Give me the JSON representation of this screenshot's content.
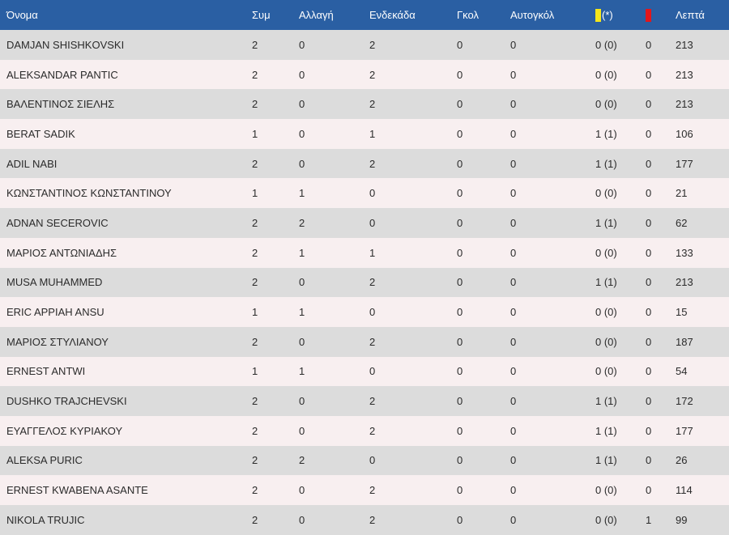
{
  "header": {
    "name": "Όνομα",
    "apps": "Συμ",
    "subs": "Αλλαγή",
    "starts": "Ενδεκάδα",
    "goals": "Γκολ",
    "own_goals": "Αυτογκόλ",
    "yellow_suffix": "(*)",
    "minutes": "Λεπτά"
  },
  "colors": {
    "header_bg": "#2a5fa3",
    "yellow_card": "#f5e61b",
    "red_card": "#e3161b",
    "row_odd": "#dcdcdc",
    "row_even": "#f8eff0"
  },
  "rows": [
    {
      "name": "DAMJAN SHISHKOVSKI",
      "apps": "2",
      "subs": "0",
      "starts": "2",
      "goals": "0",
      "own_goals": "0",
      "yellow": "0 (0)",
      "red": "0",
      "minutes": "213"
    },
    {
      "name": "ALEKSANDAR PANTIC",
      "apps": "2",
      "subs": "0",
      "starts": "2",
      "goals": "0",
      "own_goals": "0",
      "yellow": "0 (0)",
      "red": "0",
      "minutes": "213"
    },
    {
      "name": "ΒΑΛΕΝΤΙΝΟΣ ΣΙΕΛΗΣ",
      "apps": "2",
      "subs": "0",
      "starts": "2",
      "goals": "0",
      "own_goals": "0",
      "yellow": "0 (0)",
      "red": "0",
      "minutes": "213"
    },
    {
      "name": "BERAT SADIK",
      "apps": "1",
      "subs": "0",
      "starts": "1",
      "goals": "0",
      "own_goals": "0",
      "yellow": "1 (1)",
      "red": "0",
      "minutes": "106"
    },
    {
      "name": "ADIL NABI",
      "apps": "2",
      "subs": "0",
      "starts": "2",
      "goals": "0",
      "own_goals": "0",
      "yellow": "1 (1)",
      "red": "0",
      "minutes": "177"
    },
    {
      "name": "ΚΩΝΣΤΑΝΤΙΝΟΣ ΚΩΝΣΤΑΝΤΙΝΟΥ",
      "apps": "1",
      "subs": "1",
      "starts": "0",
      "goals": "0",
      "own_goals": "0",
      "yellow": "0 (0)",
      "red": "0",
      "minutes": "21"
    },
    {
      "name": "ADNAN SECEROVIC",
      "apps": "2",
      "subs": "2",
      "starts": "0",
      "goals": "0",
      "own_goals": "0",
      "yellow": "1 (1)",
      "red": "0",
      "minutes": "62"
    },
    {
      "name": "ΜΑΡΙΟΣ ΑΝΤΩΝΙΑΔΗΣ",
      "apps": "2",
      "subs": "1",
      "starts": "1",
      "goals": "0",
      "own_goals": "0",
      "yellow": "0 (0)",
      "red": "0",
      "minutes": "133"
    },
    {
      "name": "MUSA MUHAMMED",
      "apps": "2",
      "subs": "0",
      "starts": "2",
      "goals": "0",
      "own_goals": "0",
      "yellow": "1 (1)",
      "red": "0",
      "minutes": "213"
    },
    {
      "name": "ERIC APPIAH ANSU",
      "apps": "1",
      "subs": "1",
      "starts": "0",
      "goals": "0",
      "own_goals": "0",
      "yellow": "0 (0)",
      "red": "0",
      "minutes": "15"
    },
    {
      "name": "ΜΑΡΙΟΣ ΣΤΥΛΙΑΝΟΥ",
      "apps": "2",
      "subs": "0",
      "starts": "2",
      "goals": "0",
      "own_goals": "0",
      "yellow": "0 (0)",
      "red": "0",
      "minutes": "187"
    },
    {
      "name": "ERNEST ANTWI",
      "apps": "1",
      "subs": "1",
      "starts": "0",
      "goals": "0",
      "own_goals": "0",
      "yellow": "0 (0)",
      "red": "0",
      "minutes": "54"
    },
    {
      "name": "DUSHKO TRAJCHEVSKI",
      "apps": "2",
      "subs": "0",
      "starts": "2",
      "goals": "0",
      "own_goals": "0",
      "yellow": "1 (1)",
      "red": "0",
      "minutes": "172"
    },
    {
      "name": "ΕΥΑΓΓΕΛΟΣ ΚΥΡΙΑΚΟΥ",
      "apps": "2",
      "subs": "0",
      "starts": "2",
      "goals": "0",
      "own_goals": "0",
      "yellow": "1 (1)",
      "red": "0",
      "minutes": "177"
    },
    {
      "name": "ALEKSA PURIC",
      "apps": "2",
      "subs": "2",
      "starts": "0",
      "goals": "0",
      "own_goals": "0",
      "yellow": "1 (1)",
      "red": "0",
      "minutes": "26"
    },
    {
      "name": "ERNEST KWABENA ASANTE",
      "apps": "2",
      "subs": "0",
      "starts": "2",
      "goals": "0",
      "own_goals": "0",
      "yellow": "0 (0)",
      "red": "0",
      "minutes": "114"
    },
    {
      "name": "NIKOLA TRUJIC",
      "apps": "2",
      "subs": "0",
      "starts": "2",
      "goals": "0",
      "own_goals": "0",
      "yellow": "0 (0)",
      "red": "1",
      "minutes": "99"
    }
  ]
}
